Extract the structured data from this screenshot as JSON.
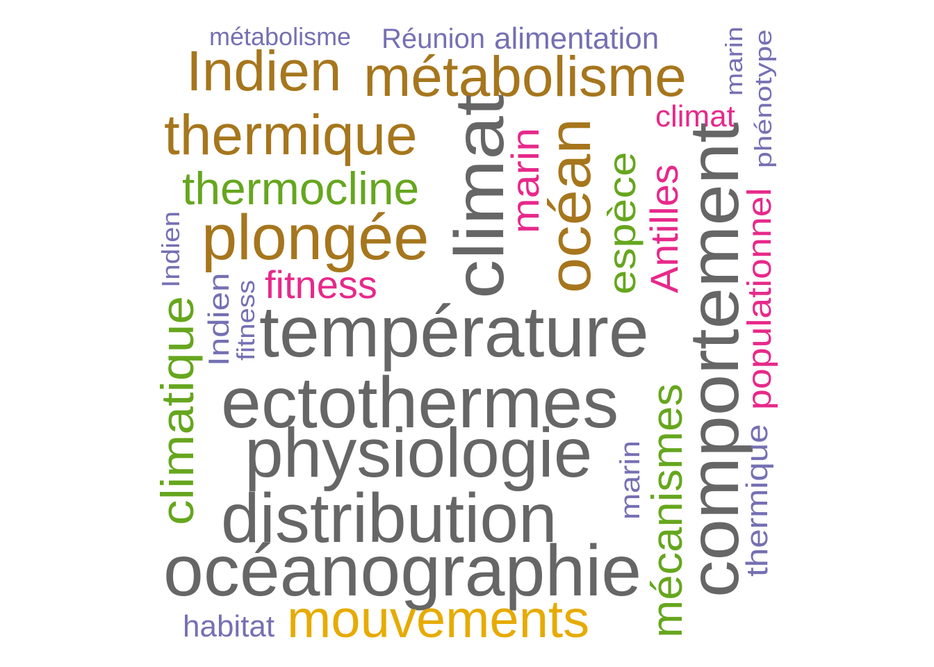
{
  "colors": {
    "gray": "#666666",
    "gold": "#A6761D",
    "green": "#66A61E",
    "pink": "#E7298A",
    "purple": "#7570B3",
    "yellow": "#E6AB02"
  },
  "words": [
    {
      "text": "métabolisme",
      "color": "purple"
    },
    {
      "text": "Réunion",
      "color": "purple"
    },
    {
      "text": "alimentation",
      "color": "purple"
    },
    {
      "text": "Indien",
      "color": "gold"
    },
    {
      "text": "métabolisme",
      "color": "gold"
    },
    {
      "text": "thermique",
      "color": "gold"
    },
    {
      "text": "climat",
      "color": "pink"
    },
    {
      "text": "thermocline",
      "color": "green"
    },
    {
      "text": "plongée",
      "color": "gold"
    },
    {
      "text": "fitness",
      "color": "pink"
    },
    {
      "text": "température",
      "color": "gray"
    },
    {
      "text": "ectothermes",
      "color": "gray"
    },
    {
      "text": "physiologie",
      "color": "gray"
    },
    {
      "text": "distribution",
      "color": "gray"
    },
    {
      "text": "océanographie",
      "color": "gray"
    },
    {
      "text": "habitat",
      "color": "purple"
    },
    {
      "text": "mouvements",
      "color": "yellow"
    },
    {
      "text": "marin",
      "color": "purple"
    },
    {
      "text": "phénotype",
      "color": "purple"
    },
    {
      "text": "Indien",
      "color": "purple"
    },
    {
      "text": "climatique",
      "color": "green"
    },
    {
      "text": "Indien",
      "color": "purple"
    },
    {
      "text": "fitness",
      "color": "purple"
    },
    {
      "text": "climat",
      "color": "gray"
    },
    {
      "text": "marin",
      "color": "pink"
    },
    {
      "text": "océan",
      "color": "gold"
    },
    {
      "text": "espèce",
      "color": "green"
    },
    {
      "text": "Antilles",
      "color": "pink"
    },
    {
      "text": "comportement",
      "color": "gray"
    },
    {
      "text": "populationnel",
      "color": "pink"
    },
    {
      "text": "marin",
      "color": "purple"
    },
    {
      "text": "mécanismes",
      "color": "green"
    },
    {
      "text": "thermique",
      "color": "purple"
    }
  ]
}
